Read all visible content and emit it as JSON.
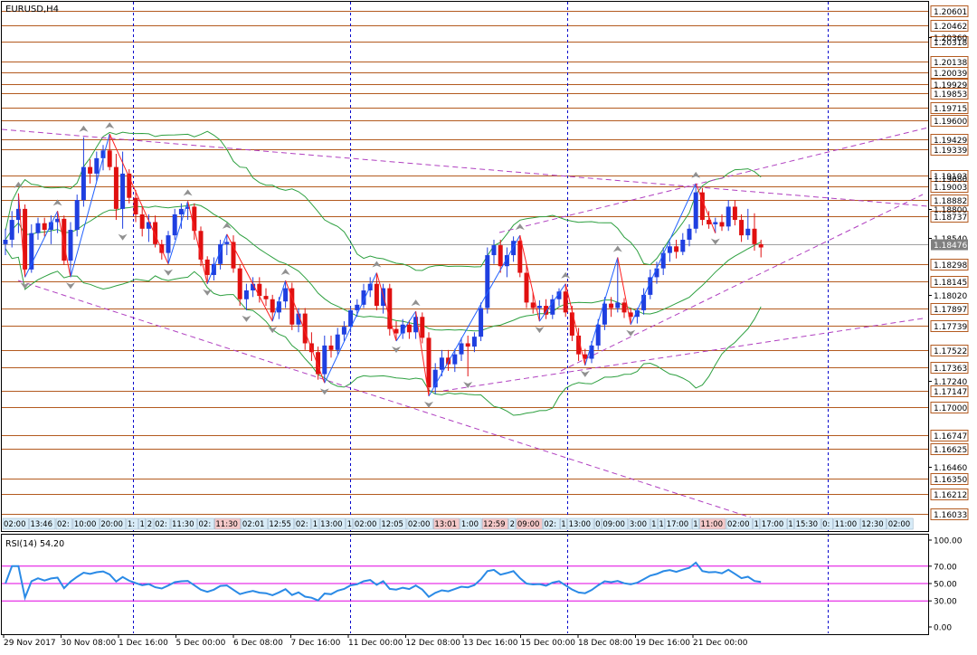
{
  "chart_title": "EURUSD,H4",
  "rsi_label": "RSI(14) 54.20",
  "current_price": "1.18476",
  "colors": {
    "background": "#ffffff",
    "frame": "#000000",
    "level_line": "#b35a1f",
    "vertical_sep": "#0000cc",
    "bull_candle": "#1f3fe0",
    "bear_candle": "#e01010",
    "zigzag_up": "#2060ff",
    "zigzag_down": "#ff2020",
    "bollinger": "#2ea040",
    "trendline": "#b040c0",
    "rsi_line": "#2a8ae6",
    "rsi_level": "#e000e0",
    "fractal": "#909090",
    "current_price_box": "#808080"
  },
  "price_scale": {
    "min": 1.1595,
    "max": 1.2063,
    "level_labels": [
      "1.20601",
      "1.20462",
      "1.20318",
      "1.20138",
      "1.20039",
      "1.19929",
      "1.19853",
      "1.19715",
      "1.19600",
      "1.19429",
      "1.19339",
      "1.19103",
      "1.19003",
      "1.18882",
      "1.18737",
      "1.18298",
      "1.18145",
      "1.17897",
      "1.17739",
      "1.17522",
      "1.17363",
      "1.17147",
      "1.17000",
      "1.16747",
      "1.16625",
      "1.16350",
      "1.16212",
      "1.16033"
    ],
    "plain_labels": [
      "1.20360",
      "1.19080",
      "1.18800",
      "1.18540",
      "1.18020",
      "1.17240",
      "1.16460"
    ]
  },
  "rsi_scale": {
    "labels": [
      "100.00",
      "70.00",
      "50.00",
      "30.00",
      "0.00"
    ],
    "levels": [
      70,
      50,
      30
    ]
  },
  "date_axis": [
    "29 Nov 2017",
    "30 Nov 08:00",
    "1 Dec 16:00",
    "5 Dec 00:00",
    "6 Dec 08:00",
    "7 Dec 16:00",
    "11 Dec 00:00",
    "12 Dec 08:00",
    "13 Dec 16:00",
    "15 Dec 00:00",
    "18 Dec 08:00",
    "19 Dec 16:00",
    "21 Dec 00:00"
  ],
  "session_labels": [
    {
      "text": "02:00",
      "hl": false
    },
    {
      "text": "13:46",
      "hl": false
    },
    {
      "text": "02:",
      "hl": false
    },
    {
      "text": "10:00",
      "hl": false
    },
    {
      "text": "20:00",
      "hl": false
    },
    {
      "text": "1:",
      "hl": false
    },
    {
      "text": "1",
      "hl": false
    },
    {
      "text": "2",
      "hl": false
    },
    {
      "text": "02:",
      "hl": false
    },
    {
      "text": "11:30",
      "hl": false
    },
    {
      "text": "02:",
      "hl": false
    },
    {
      "text": "11:30",
      "hl": true
    },
    {
      "text": "02:01",
      "hl": false
    },
    {
      "text": "12:55",
      "hl": false
    },
    {
      "text": "02:",
      "hl": false
    },
    {
      "text": "1",
      "hl": false
    },
    {
      "text": "13:00",
      "hl": false
    },
    {
      "text": "1",
      "hl": false
    },
    {
      "text": "02:00",
      "hl": false
    },
    {
      "text": "12:05",
      "hl": false
    },
    {
      "text": "02:00",
      "hl": false
    },
    {
      "text": "13:01",
      "hl": true
    },
    {
      "text": "1:00",
      "hl": false
    },
    {
      "text": "12:59",
      "hl": true
    },
    {
      "text": "2",
      "hl": false
    },
    {
      "text": "09:00",
      "hl": true
    },
    {
      "text": "02:",
      "hl": false
    },
    {
      "text": "1",
      "hl": false
    },
    {
      "text": "13:00",
      "hl": false
    },
    {
      "text": "0",
      "hl": false
    },
    {
      "text": "09:00",
      "hl": false
    },
    {
      "text": "3:00",
      "hl": false
    },
    {
      "text": "1",
      "hl": false
    },
    {
      "text": "1",
      "hl": false
    },
    {
      "text": "17:00",
      "hl": false
    },
    {
      "text": "1",
      "hl": false
    },
    {
      "text": "11:00",
      "hl": true
    },
    {
      "text": "02:00",
      "hl": false
    },
    {
      "text": "1",
      "hl": false
    },
    {
      "text": "17:00",
      "hl": false
    },
    {
      "text": "1",
      "hl": false
    },
    {
      "text": "15:30",
      "hl": false
    },
    {
      "text": "0:",
      "hl": false
    },
    {
      "text": "11:00",
      "hl": false
    },
    {
      "text": "12:30",
      "hl": false
    },
    {
      "text": "02:00",
      "hl": false
    }
  ],
  "chart_data": {
    "type": "candlestick",
    "title": "EURUSD,H4",
    "ylim": [
      1.1595,
      1.2063
    ],
    "ohlc": [
      [
        1.1848,
        1.1862,
        1.1838,
        1.1852
      ],
      [
        1.1852,
        1.1878,
        1.1845,
        1.187
      ],
      [
        1.187,
        1.1894,
        1.1858,
        1.188
      ],
      [
        1.188,
        1.1884,
        1.1818,
        1.1825
      ],
      [
        1.1825,
        1.1866,
        1.1822,
        1.1858
      ],
      [
        1.1858,
        1.1872,
        1.1852,
        1.1867
      ],
      [
        1.1867,
        1.1872,
        1.1855,
        1.1861
      ],
      [
        1.1861,
        1.1874,
        1.1848,
        1.1868
      ],
      [
        1.1868,
        1.1878,
        1.1858,
        1.1871
      ],
      [
        1.1871,
        1.1874,
        1.1829,
        1.1833
      ],
      [
        1.1833,
        1.1868,
        1.1818,
        1.1861
      ],
      [
        1.1861,
        1.1893,
        1.1855,
        1.1888
      ],
      [
        1.1888,
        1.1945,
        1.1882,
        1.1918
      ],
      [
        1.1918,
        1.1925,
        1.1903,
        1.1912
      ],
      [
        1.1912,
        1.1932,
        1.1905,
        1.1926
      ],
      [
        1.1926,
        1.1938,
        1.1915,
        1.1933
      ],
      [
        1.1933,
        1.1948,
        1.1915,
        1.1918
      ],
      [
        1.1918,
        1.193,
        1.187,
        1.188
      ],
      [
        1.188,
        1.1932,
        1.1862,
        1.1912
      ],
      [
        1.1912,
        1.1916,
        1.1885,
        1.189
      ],
      [
        1.189,
        1.1897,
        1.1868,
        1.1875
      ],
      [
        1.1875,
        1.1882,
        1.1855,
        1.1862
      ],
      [
        1.1862,
        1.1875,
        1.185,
        1.1868
      ],
      [
        1.1868,
        1.1874,
        1.1845,
        1.1848
      ],
      [
        1.1848,
        1.1852,
        1.1834,
        1.184
      ],
      [
        1.184,
        1.186,
        1.183,
        1.1856
      ],
      [
        1.1856,
        1.188,
        1.1852,
        1.1875
      ],
      [
        1.1875,
        1.1885,
        1.1862,
        1.188
      ],
      [
        1.188,
        1.1887,
        1.187,
        1.1882
      ],
      [
        1.1882,
        1.1885,
        1.1852,
        1.186
      ],
      [
        1.186,
        1.1864,
        1.1828,
        1.1834
      ],
      [
        1.1834,
        1.1837,
        1.1812,
        1.182
      ],
      [
        1.182,
        1.1836,
        1.1815,
        1.183
      ],
      [
        1.183,
        1.1852,
        1.1825,
        1.1848
      ],
      [
        1.1848,
        1.1857,
        1.1838,
        1.185
      ],
      [
        1.185,
        1.1856,
        1.1822,
        1.1826
      ],
      [
        1.1826,
        1.183,
        1.1792,
        1.1798
      ],
      [
        1.1798,
        1.1812,
        1.1788,
        1.1806
      ],
      [
        1.1806,
        1.1818,
        1.18,
        1.1812
      ],
      [
        1.1812,
        1.1818,
        1.1795,
        1.1801
      ],
      [
        1.1801,
        1.1808,
        1.1792,
        1.1798
      ],
      [
        1.1798,
        1.1802,
        1.1778,
        1.1786
      ],
      [
        1.1786,
        1.18,
        1.178,
        1.1796
      ],
      [
        1.1796,
        1.1815,
        1.179,
        1.1808
      ],
      [
        1.1808,
        1.1813,
        1.177,
        1.1775
      ],
      [
        1.1775,
        1.179,
        1.1768,
        1.1785
      ],
      [
        1.1785,
        1.179,
        1.1752,
        1.1758
      ],
      [
        1.1758,
        1.1768,
        1.1742,
        1.175
      ],
      [
        1.175,
        1.1755,
        1.1725,
        1.173
      ],
      [
        1.173,
        1.1765,
        1.1722,
        1.1756
      ],
      [
        1.1756,
        1.1765,
        1.1745,
        1.1752
      ],
      [
        1.1752,
        1.1772,
        1.1748,
        1.1766
      ],
      [
        1.1766,
        1.1778,
        1.176,
        1.1773
      ],
      [
        1.1773,
        1.1792,
        1.1768,
        1.1788
      ],
      [
        1.1788,
        1.1798,
        1.1782,
        1.1793
      ],
      [
        1.1793,
        1.1812,
        1.179,
        1.1806
      ],
      [
        1.1806,
        1.1818,
        1.18,
        1.1812
      ],
      [
        1.1812,
        1.1822,
        1.1788,
        1.1792
      ],
      [
        1.1792,
        1.1812,
        1.1785,
        1.1808
      ],
      [
        1.1808,
        1.1812,
        1.1765,
        1.1771
      ],
      [
        1.1771,
        1.1778,
        1.176,
        1.1767
      ],
      [
        1.1767,
        1.178,
        1.1762,
        1.1775
      ],
      [
        1.1775,
        1.1779,
        1.1762,
        1.1768
      ],
      [
        1.1768,
        1.1787,
        1.1762,
        1.1782
      ],
      [
        1.1782,
        1.1786,
        1.1758,
        1.1763
      ],
      [
        1.1763,
        1.1768,
        1.171,
        1.1718
      ],
      [
        1.1718,
        1.174,
        1.1712,
        1.1734
      ],
      [
        1.1734,
        1.1752,
        1.1728,
        1.1745
      ],
      [
        1.1745,
        1.1752,
        1.1733,
        1.1739
      ],
      [
        1.1739,
        1.1753,
        1.1732,
        1.1748
      ],
      [
        1.1748,
        1.1763,
        1.1742,
        1.1758
      ],
      [
        1.1758,
        1.1765,
        1.1728,
        1.1755
      ],
      [
        1.1755,
        1.1768,
        1.175,
        1.1764
      ],
      [
        1.1764,
        1.1795,
        1.176,
        1.179
      ],
      [
        1.179,
        1.1845,
        1.1785,
        1.1838
      ],
      [
        1.1838,
        1.1852,
        1.183,
        1.1847
      ],
      [
        1.1847,
        1.1852,
        1.1822,
        1.1828
      ],
      [
        1.1828,
        1.1845,
        1.1818,
        1.1838
      ],
      [
        1.1838,
        1.1855,
        1.1832,
        1.1851
      ],
      [
        1.1851,
        1.1856,
        1.1818,
        1.1822
      ],
      [
        1.1822,
        1.183,
        1.179,
        1.1795
      ],
      [
        1.1795,
        1.1804,
        1.1785,
        1.179
      ],
      [
        1.179,
        1.1797,
        1.1778,
        1.1792
      ],
      [
        1.1792,
        1.1798,
        1.178,
        1.1784
      ],
      [
        1.1784,
        1.1802,
        1.178,
        1.1798
      ],
      [
        1.1798,
        1.1808,
        1.1792,
        1.1805
      ],
      [
        1.1805,
        1.1812,
        1.1782,
        1.1786
      ],
      [
        1.1786,
        1.1792,
        1.176,
        1.1765
      ],
      [
        1.1765,
        1.1772,
        1.1742,
        1.1748
      ],
      [
        1.1748,
        1.1753,
        1.1738,
        1.1744
      ],
      [
        1.1744,
        1.176,
        1.174,
        1.1756
      ],
      [
        1.1756,
        1.178,
        1.1752,
        1.1775
      ],
      [
        1.1775,
        1.18,
        1.177,
        1.1794
      ],
      [
        1.1794,
        1.18,
        1.1782,
        1.179
      ],
      [
        1.179,
        1.1836,
        1.1786,
        1.1795
      ],
      [
        1.1795,
        1.1799,
        1.1781,
        1.1786
      ],
      [
        1.1786,
        1.179,
        1.1775,
        1.1782
      ],
      [
        1.1782,
        1.179,
        1.1776,
        1.1788
      ],
      [
        1.1788,
        1.1808,
        1.1784,
        1.1802
      ],
      [
        1.1802,
        1.1825,
        1.1798,
        1.1818
      ],
      [
        1.1818,
        1.1832,
        1.1812,
        1.1826
      ],
      [
        1.1826,
        1.1845,
        1.182,
        1.184
      ],
      [
        1.184,
        1.185,
        1.1832,
        1.1846
      ],
      [
        1.1846,
        1.1852,
        1.1835,
        1.1841
      ],
      [
        1.1841,
        1.1858,
        1.1838,
        1.1852
      ],
      [
        1.1852,
        1.1866,
        1.1846,
        1.1862
      ],
      [
        1.1862,
        1.1903,
        1.1858,
        1.1895
      ],
      [
        1.1895,
        1.1899,
        1.1865,
        1.187
      ],
      [
        1.187,
        1.1878,
        1.1862,
        1.1866
      ],
      [
        1.1866,
        1.1872,
        1.1858,
        1.1868
      ],
      [
        1.1868,
        1.1875,
        1.186,
        1.1864
      ],
      [
        1.1864,
        1.1888,
        1.186,
        1.1882
      ],
      [
        1.1882,
        1.1888,
        1.1865,
        1.187
      ],
      [
        1.187,
        1.1875,
        1.185,
        1.1856
      ],
      [
        1.1856,
        1.188,
        1.1852,
        1.1862
      ],
      [
        1.1862,
        1.1876,
        1.1842,
        1.1848
      ],
      [
        1.1848,
        1.1852,
        1.1836,
        1.1845
      ]
    ]
  }
}
